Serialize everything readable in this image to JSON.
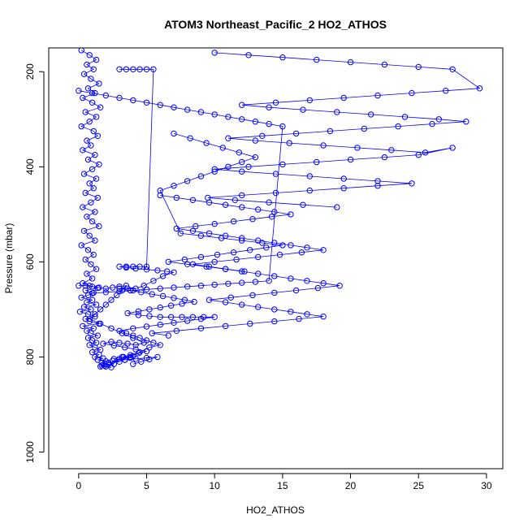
{
  "chart_data": {
    "type": "scatter",
    "title": "ATOM3 Northeast_Pacific_2 HO2_ATHOS",
    "xlabel": "HO2_ATHOS",
    "ylabel": "Pressure (mbar)",
    "xlim": [
      -2.2,
      31.2
    ],
    "ylim": [
      1035,
      150
    ],
    "y_reversed": true,
    "x_ticks": [
      0,
      5,
      10,
      15,
      20,
      25,
      30
    ],
    "x_tick_labels": [
      "0",
      "5",
      "10",
      "15",
      "20",
      "25",
      "30"
    ],
    "y_ticks": [
      200,
      400,
      600,
      800,
      1000
    ],
    "y_tick_labels": [
      "200",
      "400",
      "600",
      "800",
      "1000"
    ],
    "grid": false,
    "legend": "none",
    "marker": "open-circle",
    "connected": true,
    "color": "#0000ff",
    "series": [
      {
        "x": [
          0.2,
          0.8,
          1.3,
          0.6,
          1.1,
          0.4,
          0.9,
          1.5,
          0.7,
          1.2,
          0.3,
          1.0,
          1.6,
          0.5,
          1.3,
          0.8,
          0.2,
          1.1,
          1.4,
          0.6,
          0.9,
          0.3,
          1.2,
          0.7,
          1.5,
          1.0,
          0.4,
          1.3,
          0.8,
          1.1,
          0.5,
          1.4,
          0.9,
          0.3,
          1.2,
          0.6,
          1.0,
          1.5,
          0.4,
          0.8,
          1.2,
          0.2,
          0.7,
          1.1,
          0.5,
          0.9,
          1.3,
          0.6,
          1.0,
          0.3,
          0.8,
          1.4,
          0.5,
          1.1,
          0.7,
          0.2,
          1.0,
          0.6,
          1.3,
          0.4,
          0.9,
          0.1,
          0.7,
          1.2,
          0.5,
          0.8,
          1.5,
          0.3,
          1.1,
          0.6,
          0.9,
          1.4,
          0.7,
          1.0,
          1.3,
          0.8,
          1.2,
          1.6,
          1.0,
          1.5,
          1.2,
          1.8,
          1.4,
          2.0,
          1.7,
          2.2,
          1.9,
          1.6,
          2.4,
          2.0,
          1.7,
          2.6,
          2.2,
          3.0,
          2.5,
          3.4,
          3.0,
          3.8,
          3.3,
          4.0
        ],
        "y": [
          155,
          165,
          175,
          185,
          195,
          205,
          215,
          225,
          235,
          245,
          255,
          265,
          275,
          285,
          295,
          305,
          315,
          325,
          335,
          345,
          355,
          365,
          375,
          385,
          395,
          405,
          415,
          425,
          435,
          445,
          455,
          465,
          475,
          485,
          495,
          505,
          515,
          525,
          535,
          545,
          555,
          565,
          575,
          585,
          595,
          605,
          615,
          625,
          635,
          645,
          650,
          655,
          660,
          665,
          670,
          675,
          680,
          685,
          690,
          695,
          700,
          705,
          710,
          715,
          720,
          725,
          730,
          735,
          740,
          745,
          750,
          755,
          760,
          765,
          770,
          775,
          780,
          785,
          790,
          795,
          800,
          803,
          806,
          809,
          812,
          815,
          818,
          820,
          822,
          820,
          818,
          815,
          812,
          810,
          808,
          806,
          804,
          802,
          800,
          798
        ]
      },
      {
        "x": [
          0.0,
          0.5,
          1.0,
          1.5,
          2.0,
          2.5,
          3.0,
          3.5,
          3.2,
          2.8,
          2.4,
          2.0,
          1.6,
          1.2,
          0.8,
          1.6,
          2.4,
          3.2,
          4.0,
          4.8,
          4.2,
          3.6,
          3.0,
          2.4,
          1.8,
          2.6,
          3.4,
          4.2,
          5.0,
          4.4,
          3.8,
          3.2,
          2.6,
          3.4,
          4.2,
          5.0,
          5.8,
          5.2,
          4.6,
          4.0
        ],
        "y": [
          650,
          650,
          652,
          654,
          656,
          654,
          652,
          650,
          660,
          670,
          680,
          690,
          700,
          710,
          720,
          730,
          740,
          750,
          760,
          770,
          775,
          772,
          770,
          768,
          772,
          776,
          780,
          784,
          788,
          792,
          796,
          800,
          804,
          806,
          804,
          802,
          800,
          805,
          810,
          815
        ]
      },
      {
        "x": [
          3.0,
          3.5,
          4.0,
          4.5,
          5.0,
          5.5,
          5.0,
          4.5,
          4.0,
          3.5,
          3.0,
          3.5,
          4.2,
          5.0,
          5.8,
          6.5,
          7.0,
          6.2,
          5.5,
          4.8,
          4.2,
          3.6,
          3.0,
          3.8,
          4.6,
          5.4,
          6.2,
          7.0,
          7.8,
          8.5,
          7.6,
          6.8,
          6.0,
          5.2,
          4.4,
          3.6,
          4.4,
          5.2,
          6.0,
          6.8,
          7.6,
          8.4,
          9.2,
          10.0,
          9.0,
          8.0,
          7.0,
          6.0,
          5.0,
          4.0,
          3.0,
          3.5,
          4.0,
          4.5,
          5.0,
          5.5,
          6.0,
          5.2,
          4.5,
          3.8
        ],
        "y": [
          195,
          195,
          195,
          195,
          195,
          195,
          610,
          610,
          610,
          610,
          610,
          612,
          614,
          616,
          618,
          620,
          622,
          630,
          640,
          650,
          656,
          656,
          656,
          660,
          664,
          668,
          672,
          676,
          680,
          684,
          688,
          692,
          696,
          700,
          704,
          708,
          712,
          714,
          716,
          716,
          716,
          716,
          716,
          716,
          720,
          724,
          728,
          732,
          736,
          740,
          745,
          750,
          755,
          760,
          765,
          770,
          775,
          780,
          790,
          800
        ]
      },
      {
        "x": [
          6.0,
          7.2,
          8.4,
          9.6,
          10.8,
          12.0,
          13.2,
          14.4,
          15.6,
          14.2,
          12.8,
          11.4,
          10.0,
          8.6,
          7.2,
          8.4,
          9.6,
          10.8,
          12.0,
          13.2,
          14.4,
          15.6,
          16.8,
          18.0,
          16.4,
          14.8,
          13.2,
          11.6,
          10.0,
          8.4,
          9.6,
          10.8,
          12.0,
          13.2,
          14.4,
          15.6,
          16.8,
          18.0,
          19.2,
          17.6,
          16.0,
          14.4,
          12.8,
          11.2,
          9.6,
          10.8,
          12.0,
          13.2,
          14.4,
          15.6,
          16.8,
          18.0,
          16.2,
          14.4,
          12.6,
          10.8,
          9.0,
          7.2,
          5.4,
          6.6
        ],
        "y": [
          460,
          465,
          470,
          475,
          480,
          485,
          490,
          495,
          500,
          505,
          510,
          515,
          520,
          525,
          530,
          535,
          540,
          545,
          550,
          555,
          560,
          565,
          570,
          575,
          580,
          585,
          590,
          595,
          600,
          605,
          610,
          615,
          620,
          625,
          630,
          635,
          640,
          645,
          650,
          655,
          660,
          665,
          670,
          675,
          680,
          685,
          690,
          695,
          700,
          705,
          710,
          715,
          720,
          725,
          730,
          735,
          740,
          745,
          750,
          755
        ]
      },
      {
        "x": [
          10.0,
          12.5,
          15.0,
          17.5,
          20.0,
          22.5,
          25.0,
          27.5,
          29.5,
          27.0,
          24.5,
          22.0,
          19.5,
          17.0,
          14.5,
          12.0,
          14.0,
          16.5,
          19.0,
          21.5,
          24.0,
          26.5,
          28.5,
          26.0,
          23.5,
          21.0,
          18.5,
          16.0,
          13.5,
          11.0,
          13.0,
          15.5,
          18.0,
          20.5,
          23.0,
          25.5,
          27.5,
          25.0,
          22.5,
          20.0,
          17.5,
          15.0,
          12.5,
          10.0,
          12.0,
          14.5,
          17.0,
          19.5,
          22.0,
          24.5,
          22.0,
          19.5,
          17.0,
          14.5,
          12.0,
          9.5,
          11.5,
          14.0,
          16.5,
          19.0
        ],
        "y": [
          160,
          165,
          170,
          175,
          180,
          185,
          190,
          195,
          235,
          240,
          245,
          250,
          255,
          260,
          265,
          270,
          275,
          280,
          285,
          290,
          295,
          300,
          305,
          310,
          315,
          320,
          325,
          330,
          335,
          340,
          345,
          350,
          355,
          360,
          365,
          370,
          360,
          375,
          380,
          385,
          390,
          395,
          400,
          405,
          410,
          415,
          420,
          425,
          430,
          435,
          440,
          445,
          450,
          455,
          460,
          465,
          470,
          475,
          480,
          485
        ]
      },
      {
        "x": [
          7.0,
          8.2,
          9.4,
          10.6,
          11.8,
          13.0,
          12.0,
          11.0,
          10.0,
          9.0,
          8.0,
          7.0,
          6.0,
          7.5,
          9.0,
          10.5,
          12.0,
          13.5,
          15.0,
          13.8,
          12.6,
          11.4,
          10.2,
          9.0,
          7.8,
          6.6,
          8.0,
          9.4,
          10.8,
          12.2
        ],
        "y": [
          330,
          340,
          350,
          360,
          370,
          380,
          390,
          400,
          410,
          420,
          430,
          440,
          450,
          540,
          545,
          550,
          555,
          560,
          565,
          570,
          575,
          580,
          585,
          590,
          595,
          600,
          605,
          610,
          615,
          620
        ]
      },
      {
        "x": [
          0.0,
          1.0,
          2.0,
          3.0,
          4.0,
          5.0,
          6.0,
          7.0,
          8.0,
          9.0,
          10.0,
          11.0,
          12.0,
          13.0,
          14.0,
          15.0,
          14.0,
          13.0,
          12.0,
          11.0,
          10.0,
          9.0,
          8.0,
          7.0,
          6.0,
          5.0,
          4.0,
          3.0,
          2.0,
          1.0
        ],
        "y": [
          240,
          245,
          250,
          255,
          260,
          265,
          270,
          275,
          280,
          285,
          290,
          295,
          300,
          305,
          310,
          315,
          640,
          642,
          644,
          646,
          648,
          650,
          652,
          654,
          656,
          658,
          660,
          662,
          664,
          666
        ]
      }
    ]
  }
}
